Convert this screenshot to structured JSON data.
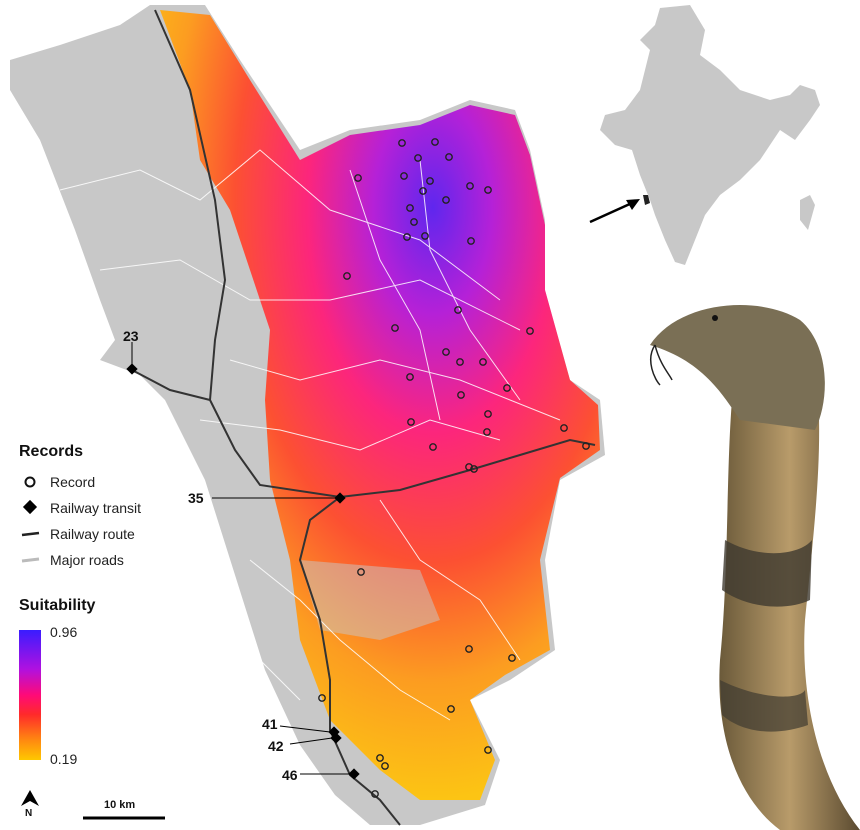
{
  "legend": {
    "records_title": "Records",
    "items": [
      {
        "label": "Record",
        "icon": "open-circle-icon"
      },
      {
        "label": "Railway transit",
        "icon": "diamond-icon"
      },
      {
        "label": "Railway route",
        "icon": "dark-line-icon"
      },
      {
        "label": "Major roads",
        "icon": "white-line-icon"
      }
    ],
    "suitability_title": "Suitability",
    "scale_max": "0.96",
    "scale_min": "0.19",
    "colors": [
      "#3a1cff",
      "#b011e0",
      "#ff0a78",
      "#ff2a2a",
      "#ff8a10",
      "#ffc800"
    ]
  },
  "transit_labels": [
    "23",
    "35",
    "41",
    "42",
    "46"
  ],
  "scale_bar": "10 km",
  "north_label": "N",
  "colors": {
    "land": "#c8c8c8",
    "railway": "#333333",
    "roads": "#ffffff",
    "records": "#222222"
  }
}
